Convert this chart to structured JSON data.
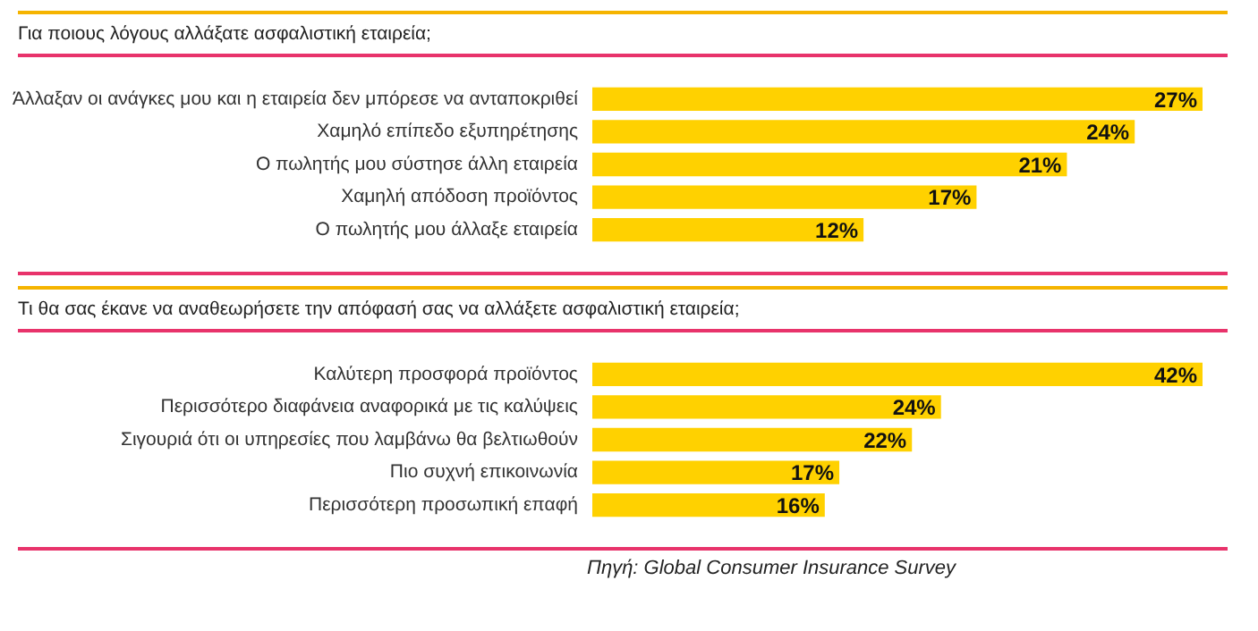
{
  "chart_data": [
    {
      "type": "bar",
      "orientation": "horizontal",
      "title": "Για ποιους λόγους αλλάξατε ασφαλιστική εταιρεία;",
      "categories": [
        "Άλλαξαν οι ανάγκες μου και η εταιρεία δεν μπόρεσε να ανταποκριθεί",
        "Χαμηλό επίπεδο εξυπηρέτησης",
        "Ο πωλητής μου σύστησε άλλη εταιρεία",
        "Χαμηλή απόδοση προϊόντος",
        "Ο πωλητής μου άλλαξε εταιρεία"
      ],
      "values": [
        27,
        24,
        21,
        17,
        12
      ],
      "value_labels": [
        "27%",
        "24%",
        "21%",
        "17%",
        "12%"
      ],
      "color": "#ffd100",
      "legend": false,
      "grid": false,
      "tick_labels": "y"
    },
    {
      "type": "bar",
      "orientation": "horizontal",
      "title": "Τι θα σας έκανε να αναθεωρήσετε την απόφασή σας να αλλάξετε ασφαλιστική εταιρεία;",
      "categories": [
        "Καλύτερη προσφορά προϊόντος",
        "Περισσότερο διαφάνεια αναφορικά με τις καλύψεις",
        "Σιγουριά ότι οι υπηρεσίες που λαμβάνω θα βελτιωθούν",
        "Πιο συχνή επικοινωνία",
        "Περισσότερη προσωπική επαφή"
      ],
      "values": [
        42,
        24,
        22,
        17,
        16
      ],
      "value_labels": [
        "42%",
        "24%",
        "22%",
        "17%",
        "16%"
      ],
      "color": "#ffd100",
      "legend": false,
      "grid": false,
      "tick_labels": "y",
      "annotations": [
        "Πηγή: Global Consumer Insurance Survey"
      ]
    }
  ]
}
